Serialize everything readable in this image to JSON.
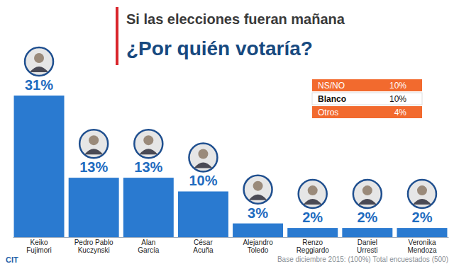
{
  "chart_data": {
    "type": "bar",
    "title": "Si las elecciones fueran mañana",
    "subtitle": "¿Por quién votaría?",
    "categories": [
      "Keiko Fujimori",
      "Pedro Pablo Kuczynski",
      "Alan García",
      "César Acuña",
      "Alejandro Toledo",
      "Renzo Reggiardo",
      "Daniel Urresti",
      "Veronika Mendoza"
    ],
    "values": [
      31,
      13,
      13,
      10,
      3,
      2,
      2,
      2
    ],
    "value_labels": [
      "31%",
      "13%",
      "13%",
      "10%",
      "3%",
      "2%",
      "2%",
      "2%"
    ],
    "color": "#2a7ad0",
    "ylim": [
      0,
      31
    ],
    "data_labels": true,
    "tick_labels": "x",
    "other_responses": {
      "categories": [
        "NS/NO",
        "Blanco",
        "Otros"
      ],
      "values": [
        10,
        10,
        4
      ],
      "value_labels": [
        "10%",
        "10%",
        "4%"
      ]
    },
    "source": "Base diciembre 2015: (100%) Total encuestados (500)",
    "logo": "CIT"
  }
}
